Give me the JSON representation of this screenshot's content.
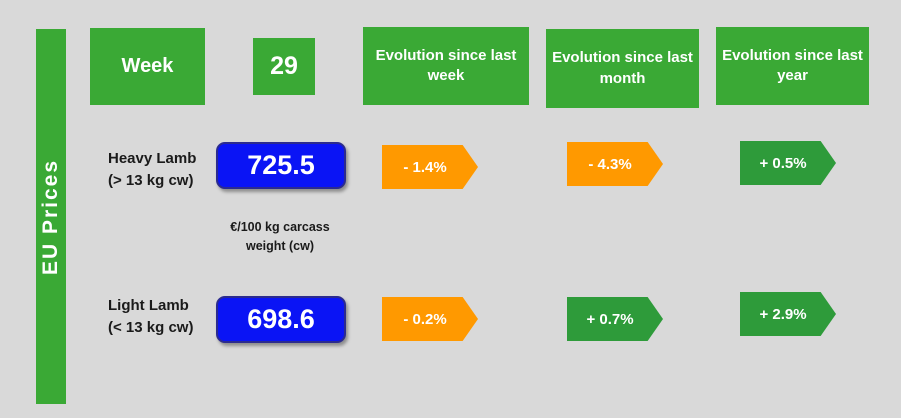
{
  "sidebar": {
    "title": "EU Prices"
  },
  "header": {
    "week_label": "Week",
    "week_number": "29",
    "evo_week": "Evolution since last week",
    "evo_month": "Evolution since last month",
    "evo_year": "Evolution since last year"
  },
  "heavy": {
    "name": "Heavy Lamb",
    "range": "(> 13 kg cw)",
    "price": "725.5",
    "week_change": "- 1.4%",
    "month_change": "- 4.3%",
    "year_change": "+ 0.5%"
  },
  "unit": {
    "line1": "€/100 kg carcass",
    "line2": "weight (cw)"
  },
  "light": {
    "name": "Light Lamb",
    "range": "(< 13 kg cw)",
    "price": "698.6",
    "week_change": "- 0.2%",
    "month_change": "+ 0.7%",
    "year_change": "+ 2.9%"
  },
  "colors": {
    "header_green": "#3aa935",
    "price_blue": "#0a14f5",
    "down_orange": "#ff9900",
    "up_green": "#2e9b3a"
  }
}
